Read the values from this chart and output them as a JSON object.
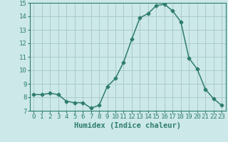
{
  "x": [
    0,
    1,
    2,
    3,
    4,
    5,
    6,
    7,
    8,
    9,
    10,
    11,
    12,
    13,
    14,
    15,
    16,
    17,
    18,
    19,
    20,
    21,
    22,
    23
  ],
  "y": [
    8.2,
    8.2,
    8.3,
    8.2,
    7.7,
    7.6,
    7.6,
    7.2,
    7.4,
    8.8,
    9.4,
    10.6,
    12.3,
    13.9,
    14.2,
    14.8,
    14.9,
    14.4,
    13.6,
    10.9,
    10.1,
    8.6,
    7.9,
    7.4
  ],
  "line_color": "#2e7d6e",
  "marker": "D",
  "marker_size": 2.5,
  "bg_color": "#cce8e8",
  "grid_color": "#aacccc",
  "xlabel": "Humidex (Indice chaleur)",
  "ylim": [
    7,
    15
  ],
  "xlim": [
    -0.5,
    23.5
  ],
  "yticks": [
    7,
    8,
    9,
    10,
    11,
    12,
    13,
    14,
    15
  ],
  "xticks": [
    0,
    1,
    2,
    3,
    4,
    5,
    6,
    7,
    8,
    9,
    10,
    11,
    12,
    13,
    14,
    15,
    16,
    17,
    18,
    19,
    20,
    21,
    22,
    23
  ],
  "tick_label_size": 6.5,
  "xlabel_size": 7.5,
  "line_width": 1.1
}
